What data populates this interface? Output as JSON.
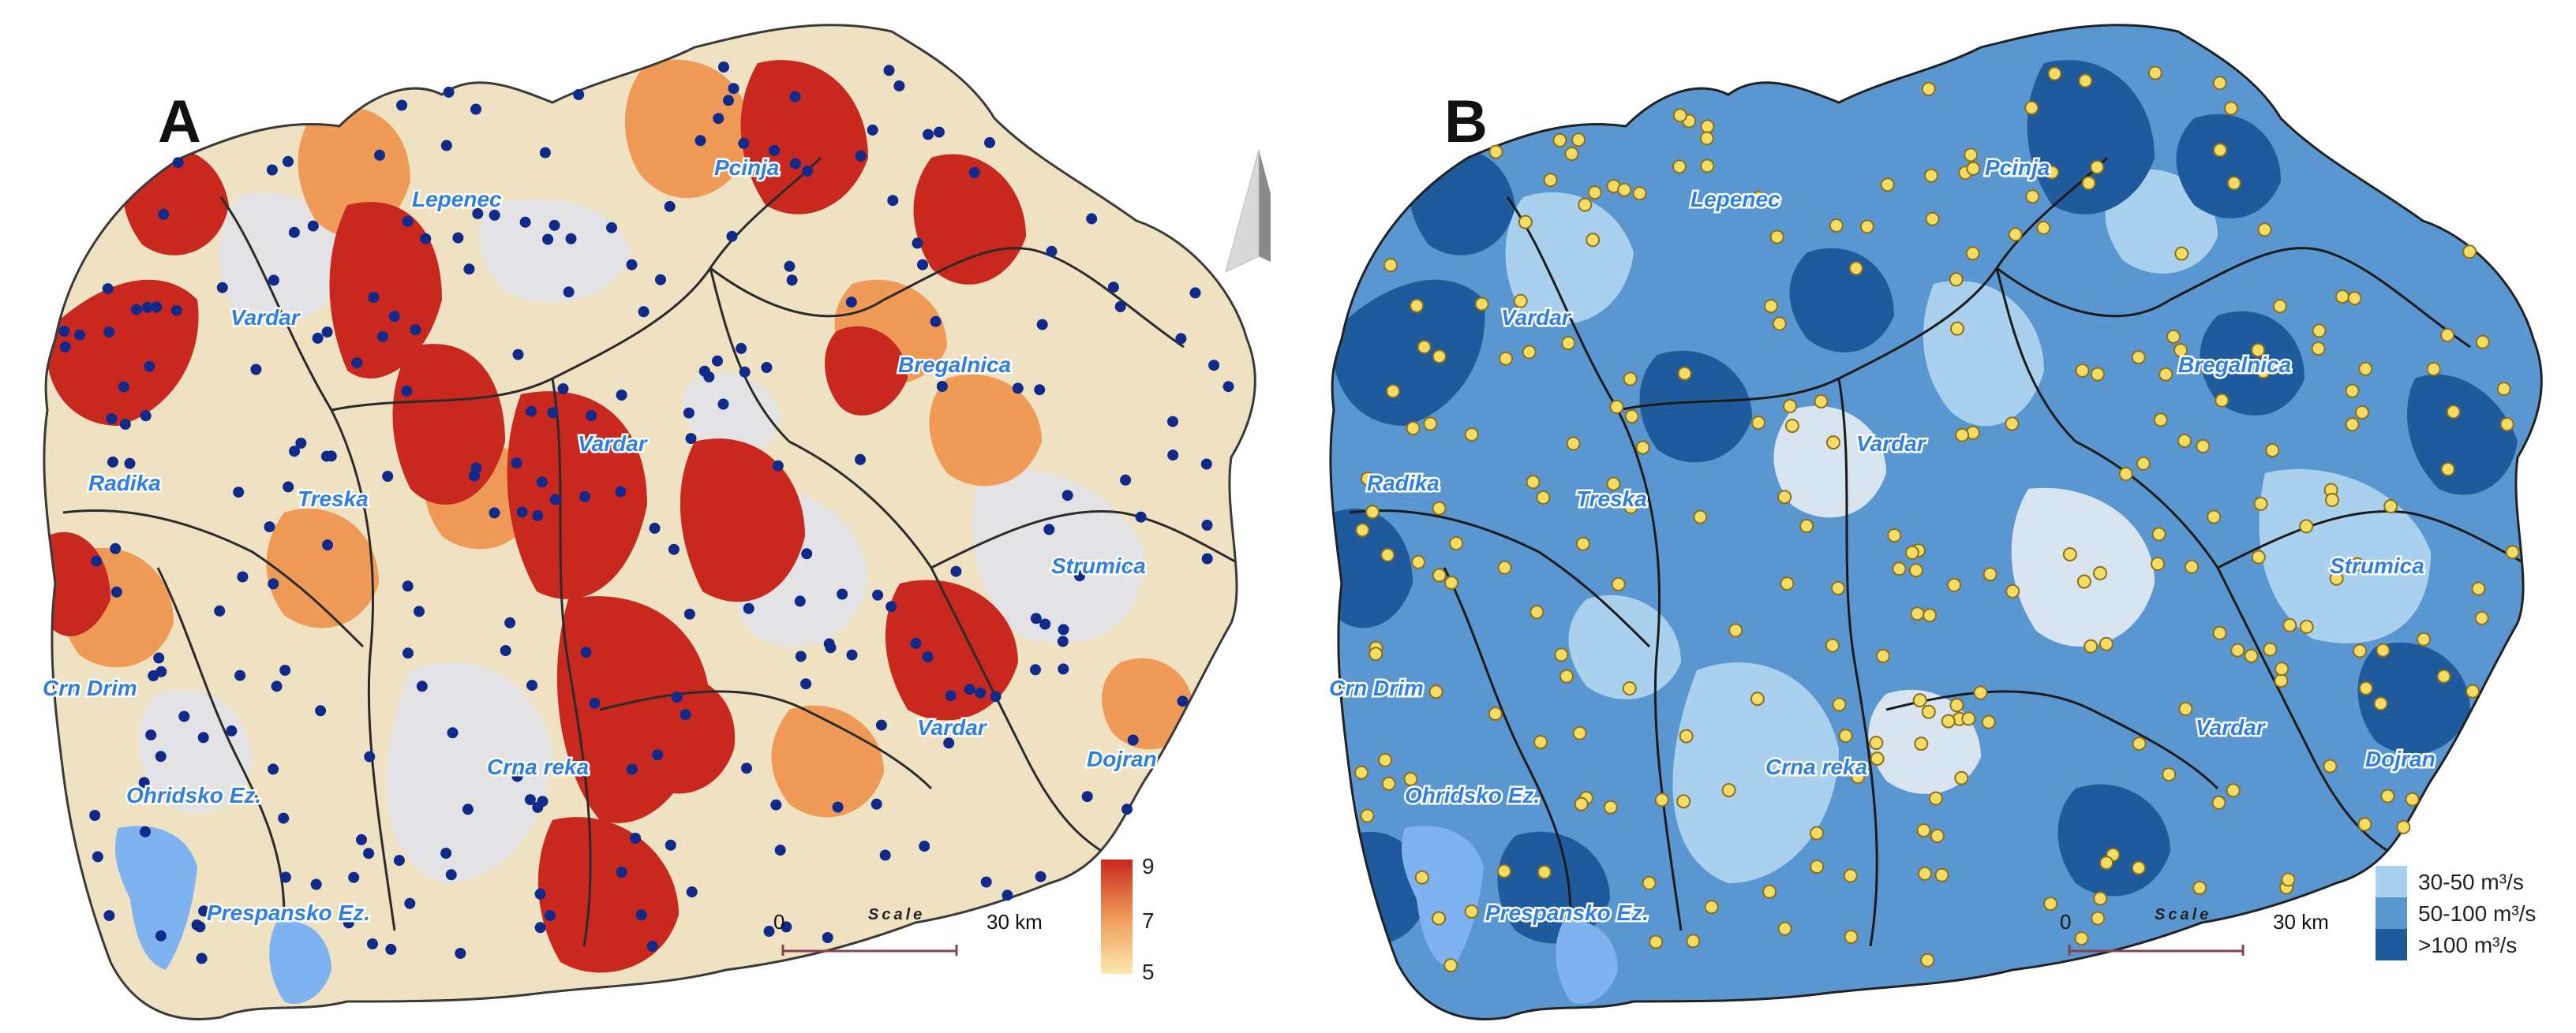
{
  "panel_a": {
    "letter": "A",
    "basins": [
      "Pcinja",
      "Lepenec",
      "Vardar",
      "Bregalnica",
      "Vardar",
      "Radika",
      "Treska",
      "Strumica",
      "Crn Drim",
      "Vardar",
      "Dojran",
      "Ohridsko Ez.",
      "Crna reka",
      "Prespansko Ez."
    ],
    "legend_title": "",
    "legend_ticks": [
      "9",
      "7",
      "5"
    ],
    "legend_colors": [
      "#c8281e",
      "#ef9a56",
      "#fde7b0"
    ],
    "scale": {
      "start": "0",
      "title": "Scale",
      "end": "30 km"
    },
    "point_color": "#102a8c"
  },
  "panel_b": {
    "letter": "B",
    "basins": [
      "Pcinja",
      "Lepenec",
      "Vardar",
      "Bregalnica",
      "Vardar",
      "Radika",
      "Treska",
      "Strumica",
      "Crn Drim",
      "Vardar",
      "Dojran",
      "Ohridsko Ez.",
      "Crna reka",
      "Prespansko Ez."
    ],
    "legend": [
      {
        "label": "30-50 m³/s",
        "color": "#a9d1ee"
      },
      {
        "label": "50-100 m³/s",
        "color": "#5a97d0"
      },
      {
        "label": ">100 m³/s",
        "color": "#1f5a9c"
      }
    ],
    "scale": {
      "start": "0",
      "title": "Scale",
      "end": "30 km"
    },
    "point_color": "#f4dd62"
  },
  "north_arrow": {
    "icon": "north-arrow-icon"
  },
  "lake_color": "#7fb2f0"
}
